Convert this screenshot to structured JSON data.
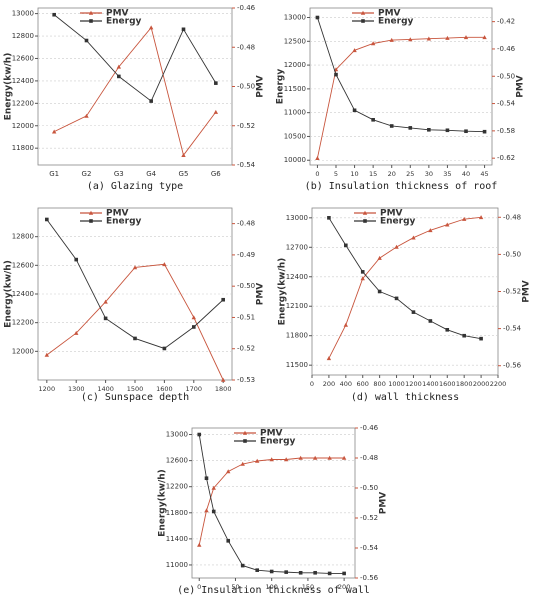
{
  "chart_data": [
    {
      "type": "line",
      "caption": "(a) Glazing type",
      "categories": [
        "G1",
        "G2",
        "G3",
        "G4",
        "G5",
        "G6"
      ],
      "y_label": "Energy(kw/h)",
      "y2_label": "PMV",
      "grid": true,
      "legend": "upper left",
      "ylim": [
        11650,
        13050
      ],
      "yticks": [
        11800,
        12000,
        12200,
        12400,
        12600,
        12800,
        13000
      ],
      "y2lim": [
        -0.54,
        -0.46
      ],
      "y2ticks": [
        -0.46,
        -0.48,
        {
          "value": -0.5,
          "label": "-0.50"
        },
        -0.52,
        -0.54
      ],
      "series": [
        {
          "name": "PMV",
          "color": "#c8553d",
          "axis": "y2",
          "values": [
            -0.523,
            -0.515,
            -0.49,
            -0.47,
            -0.535,
            -0.513
          ]
        },
        {
          "name": "Energy",
          "color": "#333333",
          "values": [
            12990,
            12760,
            12440,
            12220,
            12860,
            12380
          ]
        }
      ]
    },
    {
      "type": "line",
      "caption": "(b) Insulation thickness of roof",
      "x": [
        0,
        5,
        10,
        15,
        20,
        25,
        30,
        35,
        40,
        45
      ],
      "xlim": [
        -2,
        47
      ],
      "xticks": [
        0,
        5,
        10,
        15,
        20,
        25,
        30,
        35,
        40,
        45
      ],
      "y_label": "Energy",
      "y2_label": "PMV",
      "grid": true,
      "legend": "upper left",
      "ylim": [
        9900,
        13200
      ],
      "yticks": [
        10000,
        10500,
        11000,
        11500,
        12000,
        12500,
        13000
      ],
      "y2lim": [
        -0.63,
        -0.4
      ],
      "y2ticks": [
        -0.42,
        -0.46,
        {
          "value": -0.5,
          "label": "-0.50"
        },
        -0.54,
        -0.58,
        -0.62
      ],
      "series": [
        {
          "name": "PMV",
          "color": "#c8553d",
          "axis": "y2",
          "values": [
            -0.62,
            -0.49,
            -0.462,
            -0.452,
            -0.447,
            -0.446,
            -0.445,
            -0.444,
            -0.443,
            -0.443
          ]
        },
        {
          "name": "Energy",
          "color": "#333333",
          "values": [
            13000,
            11800,
            11050,
            10850,
            10720,
            10680,
            10640,
            10630,
            10610,
            10600
          ]
        }
      ]
    },
    {
      "type": "line",
      "caption": "(c) Sunspace depth",
      "x": [
        1200,
        1300,
        1400,
        1500,
        1600,
        1700,
        1800
      ],
      "xlim": [
        1170,
        1830
      ],
      "xticks": [
        1200,
        1300,
        1400,
        1500,
        1600,
        1700,
        1800
      ],
      "y_label": "Energy(kw/h)",
      "y2_label": "PMV",
      "grid": true,
      "legend": "upper left",
      "ylim": [
        11800,
        13000
      ],
      "yticks": [
        12000,
        12200,
        12400,
        12600,
        12800
      ],
      "y2lim": [
        -0.53,
        -0.475
      ],
      "y2ticks": [
        -0.48,
        -0.49,
        {
          "value": -0.5,
          "label": "-0.50"
        },
        -0.51,
        -0.52,
        -0.53
      ],
      "series": [
        {
          "name": "PMV",
          "color": "#c8553d",
          "axis": "y2",
          "values": [
            -0.522,
            -0.515,
            -0.505,
            -0.494,
            -0.493,
            -0.51,
            -0.53
          ]
        },
        {
          "name": "Energy",
          "color": "#333333",
          "values": [
            12920,
            12640,
            12230,
            12090,
            12020,
            12170,
            12360
          ]
        }
      ]
    },
    {
      "type": "line",
      "caption": "(d) wall thickness",
      "x": [
        200,
        400,
        600,
        800,
        1000,
        1200,
        1400,
        1600,
        1800,
        2000
      ],
      "xlim": [
        0,
        2200
      ],
      "xticks": [
        0,
        200,
        400,
        600,
        800,
        1000,
        1200,
        1400,
        1600,
        1800,
        2000,
        2200
      ],
      "y_label": "Energy(kw/h)",
      "y2_label": "PMV",
      "grid": true,
      "legend": "upper left",
      "ylim": [
        11400,
        13100
      ],
      "yticks": [
        11500,
        11800,
        12100,
        12400,
        12700,
        13000
      ],
      "y2lim": [
        -0.565,
        -0.475
      ],
      "y2ticks": [
        -0.48,
        {
          "value": -0.5,
          "label": "-0.50"
        },
        -0.52,
        -0.54,
        -0.56
      ],
      "series": [
        {
          "name": "PMV",
          "color": "#c8553d",
          "axis": "y2",
          "values": [
            -0.556,
            -0.538,
            -0.513,
            -0.502,
            -0.496,
            -0.491,
            -0.487,
            -0.484,
            -0.481,
            -0.48
          ]
        },
        {
          "name": "Energy",
          "color": "#333333",
          "values": [
            13000,
            12720,
            12450,
            12250,
            12180,
            12040,
            11950,
            11860,
            11800,
            11770
          ]
        }
      ]
    },
    {
      "type": "line",
      "caption": "(e) Insulation thickness of wall",
      "x": [
        0,
        10,
        20,
        40,
        60,
        80,
        100,
        120,
        140,
        160,
        180,
        200
      ],
      "xlim": [
        -10,
        215
      ],
      "xticks": [
        0,
        50,
        100,
        150,
        200
      ],
      "y_label": "Energy(kw/h)",
      "y2_label": "PMV",
      "grid": true,
      "legend": "upper left",
      "ylim": [
        10800,
        13100
      ],
      "yticks": [
        11000,
        11400,
        11800,
        12200,
        12600,
        13000
      ],
      "y2lim": [
        -0.56,
        -0.46
      ],
      "y2ticks": [
        -0.46,
        -0.48,
        {
          "value": -0.5,
          "label": "-0.50"
        },
        -0.52,
        -0.54,
        -0.56
      ],
      "series": [
        {
          "name": "PMV",
          "color": "#c8553d",
          "axis": "y2",
          "values": [
            -0.538,
            -0.515,
            -0.5,
            -0.489,
            -0.484,
            -0.482,
            -0.481,
            -0.481,
            -0.48,
            -0.48,
            -0.48,
            -0.48
          ]
        },
        {
          "name": "Energy",
          "color": "#333333",
          "values": [
            13000,
            12330,
            11820,
            11370,
            10990,
            10920,
            10900,
            10890,
            10880,
            10880,
            10870,
            10870
          ]
        }
      ]
    }
  ]
}
